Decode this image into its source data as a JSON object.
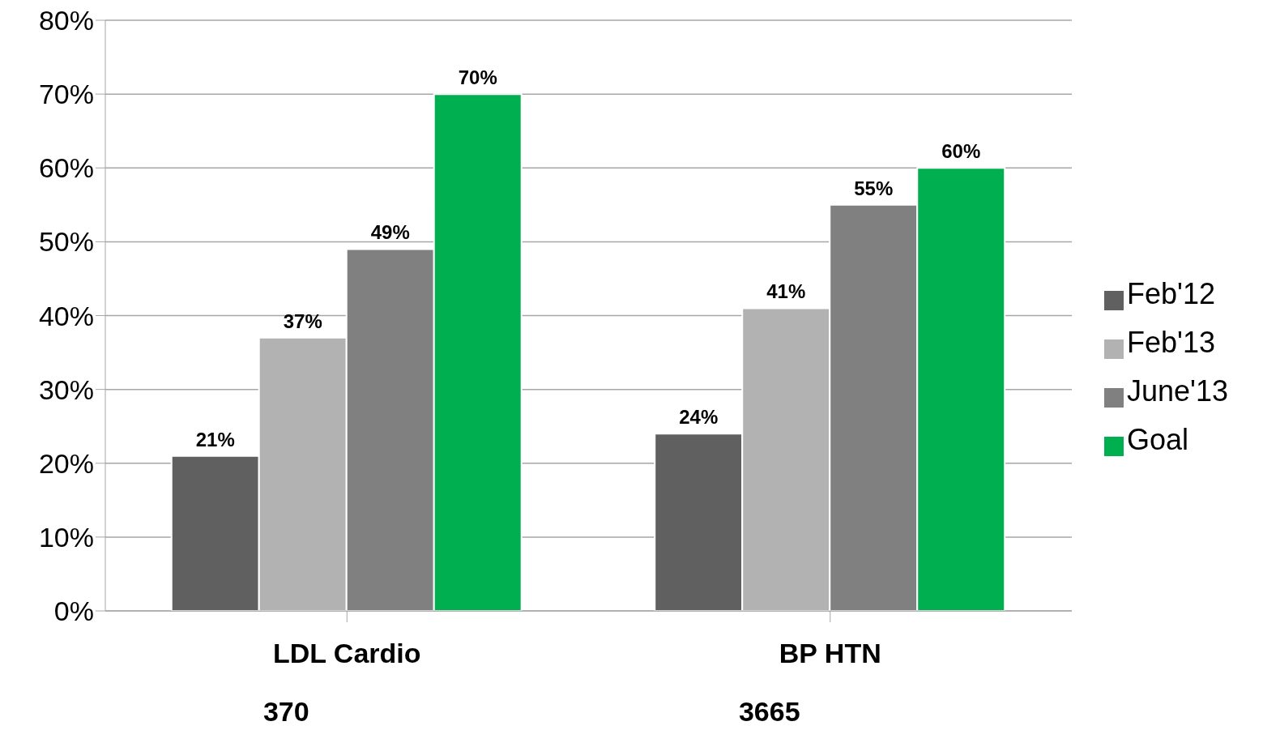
{
  "chart_data": {
    "type": "bar",
    "categories": [
      "LDL Cardio",
      "BP HTN"
    ],
    "series": [
      {
        "name": "Feb'12",
        "color": "#606060",
        "values": [
          21,
          24
        ],
        "value_labels": [
          "21%",
          "24%"
        ]
      },
      {
        "name": "Feb'13",
        "color": "#b2b2b2",
        "values": [
          37,
          41
        ],
        "value_labels": [
          "37%",
          "41%"
        ]
      },
      {
        "name": "June'13",
        "color": "#808080",
        "values": [
          49,
          55
        ],
        "value_labels": [
          "49%",
          "55%"
        ]
      },
      {
        "name": "Goal",
        "color": "#00b050",
        "values": [
          70,
          60
        ],
        "value_labels": [
          "70%",
          "60%"
        ]
      }
    ],
    "ylim": [
      0,
      80
    ],
    "yticks": [
      {
        "value": 0,
        "label": "0%"
      },
      {
        "value": 10,
        "label": "10%"
      },
      {
        "value": 20,
        "label": "20%"
      },
      {
        "value": 30,
        "label": "30%"
      },
      {
        "value": 40,
        "label": "40%"
      },
      {
        "value": 50,
        "label": "50%"
      },
      {
        "value": 60,
        "label": "60%"
      },
      {
        "value": 70,
        "label": "70%"
      },
      {
        "value": 80,
        "label": "80%"
      }
    ],
    "annotations": [
      "370",
      "3665"
    ],
    "grid": "y",
    "legend": "right"
  }
}
